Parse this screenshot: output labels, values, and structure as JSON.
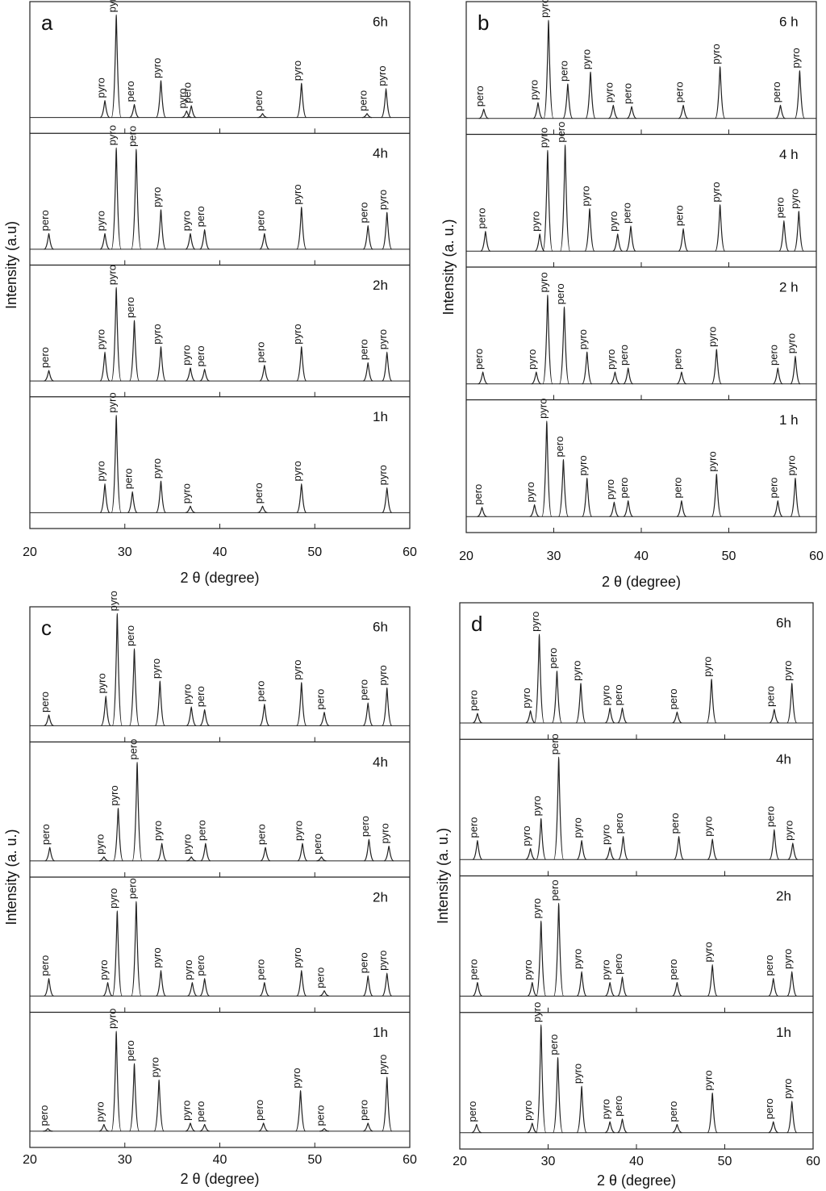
{
  "chart_data": [
    {
      "type": "line",
      "letter": "a",
      "ylabel": "Intensity (a.u)",
      "xlabel": "2 θ (degree)",
      "xlim": [
        20,
        60
      ],
      "xticks": [
        20,
        30,
        40,
        50,
        60
      ],
      "ylim": [
        0,
        100
      ],
      "traces": [
        {
          "label": "6h",
          "x": [
            27.9,
            29.1,
            31.0,
            33.8,
            36.5,
            37.0,
            44.5,
            48.6,
            55.5,
            57.5
          ],
          "values": [
            25,
            90,
            22,
            40,
            17,
            21,
            15,
            38,
            15,
            34
          ],
          "peak_labels": [
            "pyro",
            "pyro",
            "pero",
            "pyro",
            "pyro",
            "pero",
            "pero",
            "pyro",
            "pero",
            "pyro"
          ]
        },
        {
          "label": "4h",
          "x": [
            22.0,
            27.9,
            29.1,
            31.2,
            33.8,
            36.9,
            38.4,
            44.7,
            48.6,
            55.6,
            57.6
          ],
          "values": [
            24,
            24,
            89,
            88,
            42,
            24,
            27,
            24,
            44,
            30,
            40
          ],
          "peak_labels": [
            "pero",
            "pyro",
            "pyro",
            "pero",
            "pyro",
            "pyro",
            "pero",
            "pero",
            "pyro",
            "pero",
            "pyro"
          ]
        },
        {
          "label": "2h",
          "x": [
            22.0,
            27.9,
            29.1,
            31.0,
            33.8,
            36.9,
            38.4,
            44.7,
            48.6,
            55.6,
            57.6
          ],
          "values": [
            20,
            34,
            83,
            58,
            38,
            22,
            21,
            24,
            38,
            26,
            34
          ],
          "peak_labels": [
            "pero",
            "pyro",
            "pyro",
            "pero",
            "pyro",
            "pyro",
            "pero",
            "pero",
            "pyro",
            "pero",
            "pyro"
          ]
        },
        {
          "label": "1h",
          "x": [
            27.9,
            29.1,
            30.8,
            33.8,
            36.9,
            44.5,
            48.6,
            57.6
          ],
          "values": [
            34,
            86,
            28,
            36,
            17,
            17,
            34,
            31
          ],
          "peak_labels": [
            "pyro",
            "pyro",
            "pero",
            "pyro",
            "pyro",
            "pero",
            "pyro",
            "pyro"
          ]
        }
      ]
    },
    {
      "type": "line",
      "letter": "b",
      "ylabel": "Intensity (a. u.)",
      "xlabel": "2 θ (degree)",
      "xlim": [
        20,
        60
      ],
      "xticks": [
        20,
        30,
        40,
        50,
        60
      ],
      "ylim": [
        0,
        100
      ],
      "traces": [
        {
          "label": "6 h",
          "x": [
            22.0,
            28.2,
            29.4,
            31.6,
            34.2,
            36.8,
            38.9,
            44.8,
            49.0,
            55.9,
            58.1
          ],
          "values": [
            19,
            24,
            86,
            38,
            47,
            22,
            21,
            22,
            51,
            22,
            48
          ],
          "peak_labels": [
            "pero",
            "pyro",
            "pyro",
            "pero",
            "pyro",
            "pyro",
            "pero",
            "pero",
            "pyro",
            "pero",
            "pyro"
          ]
        },
        {
          "label": "4 h",
          "x": [
            22.2,
            28.4,
            29.3,
            31.3,
            34.1,
            37.3,
            38.8,
            44.8,
            49.0,
            56.3,
            58.0
          ],
          "values": [
            27,
            25,
            88,
            92,
            44,
            25,
            31,
            29,
            47,
            35,
            42
          ],
          "peak_labels": [
            "pero",
            "pyro",
            "pyro",
            "pero",
            "pyro",
            "pyro",
            "pero",
            "pero",
            "pyro",
            "pero",
            "pyro"
          ]
        },
        {
          "label": "2 h",
          "x": [
            21.9,
            28.0,
            29.3,
            31.2,
            33.8,
            37.0,
            38.5,
            44.6,
            48.6,
            55.6,
            57.6
          ],
          "values": [
            21,
            21,
            79,
            70,
            36,
            21,
            24,
            21,
            38,
            24,
            33
          ],
          "peak_labels": [
            "pero",
            "pyro",
            "pyro",
            "pero",
            "pyro",
            "pyro",
            "pero",
            "pero",
            "pyro",
            "pero",
            "pyro"
          ]
        },
        {
          "label": "1 h",
          "x": [
            21.8,
            27.8,
            29.2,
            31.1,
            33.8,
            36.9,
            38.5,
            44.6,
            48.6,
            55.6,
            57.6
          ],
          "values": [
            19,
            21,
            84,
            55,
            41,
            23,
            24,
            24,
            44,
            24,
            41
          ],
          "peak_labels": [
            "pero",
            "pyro",
            "pyro",
            "pero",
            "pyro",
            "pyro",
            "pero",
            "pero",
            "pyro",
            "pero",
            "pyro"
          ]
        }
      ]
    },
    {
      "type": "line",
      "letter": "c",
      "ylabel": "Intensity (a. u.)",
      "xlabel": "2 θ (degree)",
      "xlim": [
        20,
        60
      ],
      "xticks": [
        20,
        30,
        40,
        50,
        60
      ],
      "ylim": [
        0,
        100
      ],
      "traces": [
        {
          "label": "6h",
          "x": [
            22.0,
            28.0,
            29.2,
            31.0,
            33.7,
            37.0,
            38.4,
            44.7,
            48.6,
            51.0,
            55.6,
            57.6
          ],
          "values": [
            20,
            34,
            95,
            69,
            45,
            26,
            24,
            28,
            44,
            22,
            29,
            40
          ],
          "peak_labels": [
            "pero",
            "pyro",
            "pyro",
            "pero",
            "pyro",
            "pyro",
            "pero",
            "pero",
            "pyro",
            "pero",
            "pero",
            "pyro"
          ]
        },
        {
          "label": "4h",
          "x": [
            22.1,
            27.8,
            29.3,
            31.3,
            33.9,
            37.0,
            38.5,
            44.8,
            48.7,
            50.7,
            55.7,
            57.8
          ],
          "values": [
            22,
            15,
            51,
            85,
            25,
            15,
            25,
            22,
            25,
            15,
            28,
            23
          ],
          "peak_labels": [
            "pero",
            "pyro",
            "pyro",
            "pero",
            "pyro",
            "pyro",
            "pero",
            "pero",
            "pyro",
            "pero",
            "pero",
            "pyro"
          ]
        },
        {
          "label": "2h",
          "x": [
            22.0,
            28.2,
            29.2,
            31.2,
            33.8,
            37.1,
            38.4,
            44.7,
            48.6,
            51.0,
            55.6,
            57.6
          ],
          "values": [
            25,
            22,
            75,
            82,
            31,
            22,
            25,
            22,
            31,
            16,
            27,
            29
          ],
          "peak_labels": [
            "pero",
            "pyro",
            "pyro",
            "pero",
            "pyro",
            "pyro",
            "pero",
            "pero",
            "pyro",
            "pero",
            "pero",
            "pyro"
          ]
        },
        {
          "label": "1h",
          "x": [
            21.9,
            27.8,
            29.1,
            31.0,
            33.6,
            36.9,
            38.4,
            44.6,
            48.5,
            51.0,
            55.6,
            57.6
          ],
          "values": [
            14,
            17,
            86,
            62,
            50,
            18,
            17,
            18,
            42,
            14,
            18,
            52
          ],
          "peak_labels": [
            "pero",
            "pyro",
            "pyro",
            "pero",
            "pyro",
            "pyro",
            "pero",
            "pero",
            "pyro",
            "pero",
            "pero",
            "pyro"
          ]
        }
      ]
    },
    {
      "type": "line",
      "letter": "d",
      "ylabel": "Intensity (a. u.)",
      "xlabel": "2 θ (degree)",
      "xlim": [
        20,
        60
      ],
      "xticks": [
        20,
        30,
        40,
        50,
        60
      ],
      "ylim": [
        0,
        100
      ],
      "traces": [
        {
          "label": "6h",
          "x": [
            22.0,
            28.0,
            29.0,
            31.0,
            33.7,
            37.0,
            38.4,
            44.6,
            48.5,
            55.6,
            57.6
          ],
          "values": [
            19,
            21,
            77,
            50,
            41,
            23,
            23,
            20,
            44,
            22,
            41
          ],
          "peak_labels": [
            "pero",
            "pyro",
            "pyro",
            "pero",
            "pyro",
            "pyro",
            "pero",
            "pero",
            "pyro",
            "pero",
            "pyro"
          ]
        },
        {
          "label": "4h",
          "x": [
            22.0,
            28.0,
            29.2,
            31.2,
            33.8,
            37.0,
            38.5,
            44.8,
            48.6,
            55.6,
            57.7
          ],
          "values": [
            26,
            20,
            42,
            87,
            26,
            21,
            29,
            29,
            27,
            34,
            24
          ],
          "peak_labels": [
            "pero",
            "pyro",
            "pyro",
            "pero",
            "pyro",
            "pyro",
            "pero",
            "pero",
            "pyro",
            "pero",
            "pyro"
          ]
        },
        {
          "label": "2h",
          "x": [
            22.0,
            28.2,
            29.2,
            31.2,
            33.8,
            37.0,
            38.4,
            44.6,
            48.6,
            55.5,
            57.6
          ],
          "values": [
            22,
            22,
            67,
            80,
            30,
            22,
            26,
            22,
            35,
            25,
            30
          ],
          "peak_labels": [
            "pero",
            "pyro",
            "pyro",
            "pero",
            "pyro",
            "pyro",
            "pero",
            "pero",
            "pyro",
            "pero",
            "pyro"
          ]
        },
        {
          "label": "1h",
          "x": [
            21.9,
            28.2,
            29.2,
            31.1,
            33.8,
            37.0,
            38.4,
            44.6,
            48.6,
            55.5,
            57.6
          ],
          "values": [
            18,
            19,
            91,
            67,
            46,
            20,
            22,
            18,
            41,
            20,
            35
          ],
          "peak_labels": [
            "pero",
            "pyro",
            "pyro",
            "pero",
            "pyro",
            "pyro",
            "pero",
            "pero",
            "pyro",
            "pero",
            "pyro"
          ]
        }
      ]
    }
  ]
}
